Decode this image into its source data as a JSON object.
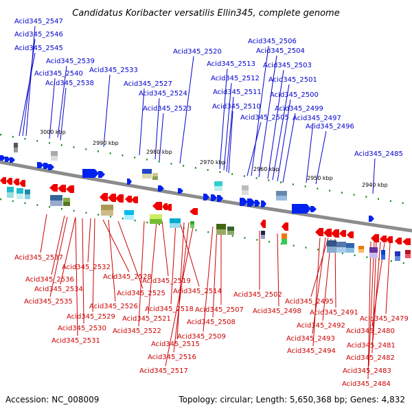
{
  "title": "Candidatus Koribacter versatilis Ellin345, complete genome",
  "footer": {
    "accession": "Accession: NC_008009",
    "summary": "Topology: circular; Length: 5,650,368 bp; Genes: 4,832"
  },
  "colors": {
    "top_label": "#0000cc",
    "bottom_label": "#cc0000",
    "forward_gene": "#0022ee",
    "reverse_gene": "#ee0000",
    "backbone": "#999999",
    "tick": "#228822"
  },
  "scale_labels": [
    "3000 kbp",
    "2990 kbp",
    "2980 kbp",
    "2970 kbp",
    "2960 kbp",
    "2950 kbp",
    "2940 kbp"
  ],
  "top_genes": [
    "Acid345_2547",
    "Acid345_2546",
    "Acid345_2545",
    "Acid345_2539",
    "Acid345_2540",
    "Acid345_2538",
    "Acid345_2533",
    "Acid345_2527",
    "Acid345_2524",
    "Acid345_2523",
    "Acid345_2520",
    "Acid345_2513",
    "Acid345_2512",
    "Acid345_2511",
    "Acid345_2510",
    "Acid345_2506",
    "Acid345_2504",
    "Acid345_2503",
    "Acid345_2501",
    "Acid345_2500",
    "Acid345_2499",
    "Acid345_2505",
    "Acid345_2497",
    "Acid345_2496",
    "Acid345_2485"
  ],
  "bottom_genes": [
    "Acid345_2537",
    "Acid345_2532",
    "Acid345_2536",
    "Acid345_2528",
    "Acid345_2534",
    "Acid345_2535",
    "Acid345_2525",
    "Acid345_2519",
    "Acid345_2526",
    "Acid345_2514",
    "Acid345_2529",
    "Acid345_2518",
    "Acid345_2521",
    "Acid345_2530",
    "Acid345_2522",
    "Acid345_2531",
    "Acid345_2515",
    "Acid345_2516",
    "Acid345_2517",
    "Acid345_2507",
    "Acid345_2508",
    "Acid345_2509",
    "Acid345_2502",
    "Acid345_2498",
    "Acid345_2495",
    "Acid345_2491",
    "Acid345_2492",
    "Acid345_2493",
    "Acid345_2494",
    "Acid345_2479",
    "Acid345_2480",
    "Acid345_2481",
    "Acid345_2482",
    "Acid345_2483",
    "Acid345_2484"
  ]
}
